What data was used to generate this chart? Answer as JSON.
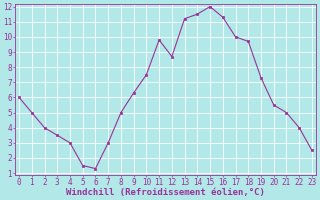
{
  "x": [
    0,
    1,
    2,
    3,
    4,
    5,
    6,
    7,
    8,
    9,
    10,
    11,
    12,
    13,
    14,
    15,
    16,
    17,
    18,
    19,
    20,
    21,
    22,
    23
  ],
  "y": [
    6,
    5,
    4,
    3.5,
    3,
    1.5,
    1.3,
    3,
    5,
    6.3,
    7.5,
    9.8,
    8.7,
    11.2,
    11.5,
    12,
    11.3,
    10,
    9.7,
    7.3,
    5.5,
    5,
    4,
    2.5
  ],
  "line_color": "#993399",
  "marker_color": "#993399",
  "bg_color": "#b2e8e8",
  "grid_color": "#c8e8e8",
  "xlabel": "Windchill (Refroidissement éolien,°C)",
  "xlabel_color": "#993399",
  "xlim": [
    0,
    23
  ],
  "ylim": [
    1,
    12
  ],
  "xticks": [
    0,
    1,
    2,
    3,
    4,
    5,
    6,
    7,
    8,
    9,
    10,
    11,
    12,
    13,
    14,
    15,
    16,
    17,
    18,
    19,
    20,
    21,
    22,
    23
  ],
  "yticks": [
    1,
    2,
    3,
    4,
    5,
    6,
    7,
    8,
    9,
    10,
    11,
    12
  ],
  "tick_color": "#993399",
  "tick_fontsize": 5.5,
  "xlabel_fontsize": 6.5,
  "spine_color": "#993399",
  "linewidth": 0.8,
  "markersize": 2.0
}
